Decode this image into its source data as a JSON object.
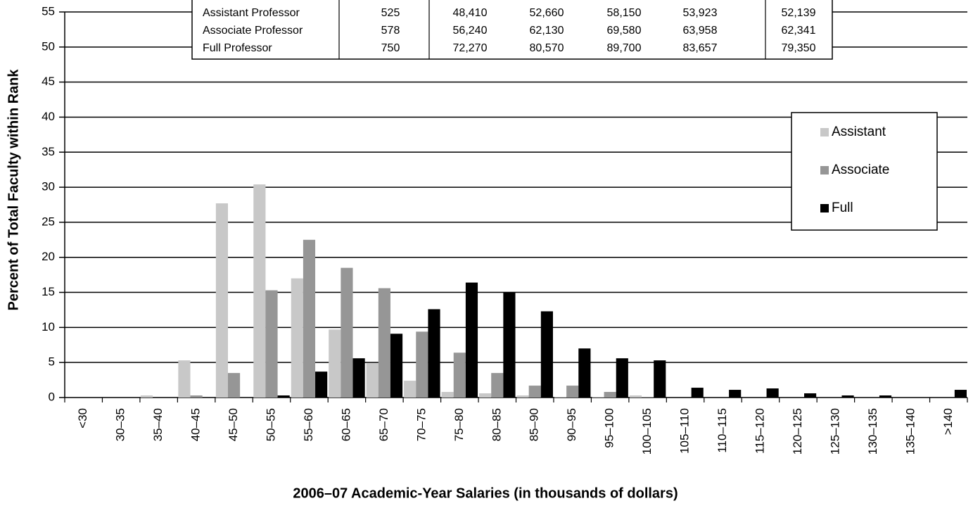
{
  "chart_data": {
    "type": "bar",
    "xlabel": "2006–07 Academic-Year Salaries (in thousands of dollars)",
    "ylabel": "Percent of Total Faculty within Rank",
    "categories": [
      "<30",
      "30–35",
      "35–40",
      "40–45",
      "45–50",
      "50–55",
      "55–60",
      "60–65",
      "65–70",
      "70–75",
      "75–80",
      "80–85",
      "85–90",
      "90–95",
      "95–100",
      "100–105",
      "105–110",
      "110–115",
      "115–120",
      "120–125",
      "125–130",
      "130–135",
      "135–140",
      ">140"
    ],
    "series": [
      {
        "name": "Assistant",
        "color": "#c8c8c8",
        "values": [
          0,
          0,
          0.3,
          5.3,
          27.7,
          30.4,
          17,
          9.7,
          4.9,
          2.4,
          0.8,
          0.6,
          0.3,
          0.1,
          0.1,
          0.3,
          0,
          0,
          0,
          0,
          0,
          0,
          0,
          0
        ]
      },
      {
        "name": "Associate",
        "color": "#969696",
        "values": [
          0,
          0,
          0,
          0.3,
          3.5,
          15.3,
          22.5,
          18.5,
          15.6,
          9.4,
          6.4,
          3.5,
          1.7,
          1.7,
          0.8,
          0.1,
          0,
          0,
          0,
          0,
          0,
          0,
          0,
          0
        ]
      },
      {
        "name": "Full",
        "color": "#000000",
        "values": [
          0,
          0,
          0,
          0,
          0,
          0.3,
          3.7,
          5.6,
          9.1,
          12.6,
          16.4,
          15,
          12.3,
          7,
          5.6,
          5.3,
          1.4,
          1.1,
          1.3,
          0.6,
          0.3,
          0.3,
          0,
          1.1
        ]
      }
    ],
    "ylim": [
      0,
      55
    ],
    "yticks": [
      0,
      5,
      10,
      15,
      20,
      25,
      30,
      35,
      40,
      45,
      50,
      55
    ],
    "grid": true,
    "legend": "right"
  },
  "table": {
    "rows": [
      [
        "Assistant Professor",
        "525",
        "48,410",
        "52,660",
        "58,150",
        "53,923",
        "52,139"
      ],
      [
        "Associate Professor",
        "578",
        "56,240",
        "62,130",
        "69,580",
        "63,958",
        "62,341"
      ],
      [
        "Full Professor",
        "750",
        "72,270",
        "80,570",
        "89,700",
        "83,657",
        "79,350"
      ]
    ]
  }
}
